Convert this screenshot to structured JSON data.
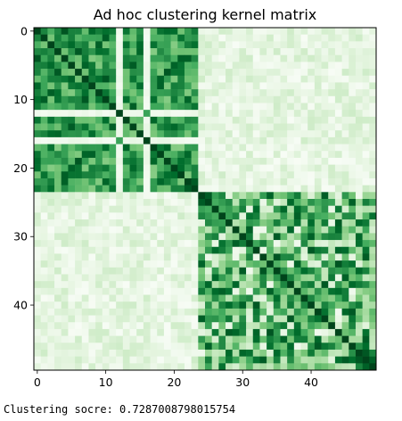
{
  "chart_data": {
    "type": "heatmap",
    "title": "Ad hoc clustering kernel matrix",
    "xlabel": "",
    "ylabel": "",
    "size": 50,
    "ticks": [
      0,
      10,
      20,
      30,
      40
    ],
    "colormap": "Greens",
    "value_range": [
      0,
      1
    ],
    "clusters": [
      {
        "start": 0,
        "end": 23,
        "members_strong": [
          0,
          1,
          2,
          3,
          4,
          5,
          6,
          7,
          8,
          9,
          10,
          11,
          13,
          14,
          15,
          17,
          18,
          19,
          20,
          21,
          22,
          23
        ],
        "members_weak": [
          12,
          16
        ]
      },
      {
        "start": 24,
        "end": 49
      }
    ],
    "values_description": "block-structured similarity: high within rows/cols 0-23 and 24-49, low between blocks, diagonal = 1"
  },
  "caption": {
    "text": "Clustering socre: 0.7287008798015754"
  },
  "colors": {
    "low": "#f7fcf5",
    "high": "#00441b"
  }
}
